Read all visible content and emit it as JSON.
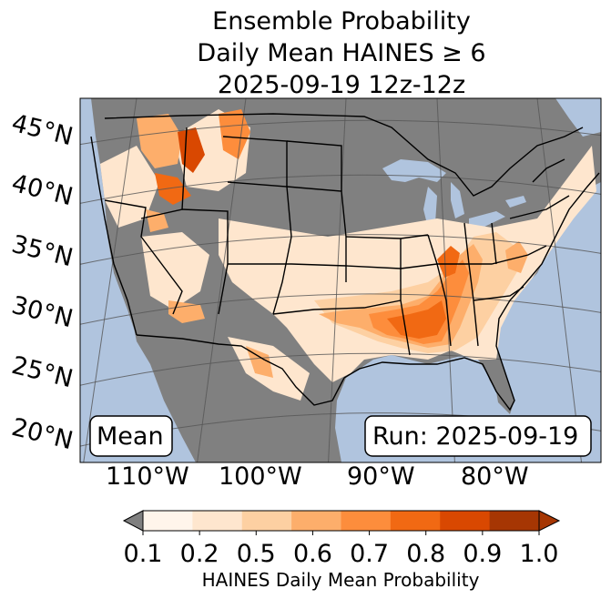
{
  "title": {
    "line1": "Ensemble Probability",
    "line2": "Daily Mean HAINES ≥ 6",
    "line3": "2025-09-19 12z-12z"
  },
  "map": {
    "lat_labels": [
      "45°N",
      "40°N",
      "35°N",
      "30°N",
      "25°N",
      "20°N"
    ],
    "lon_labels": [
      "110°W",
      "100°W",
      "90°W",
      "80°W"
    ],
    "stat_box": "Mean",
    "run_box": "Run: 2025-09-19",
    "colors": {
      "ocean": "#b0c4de",
      "land_low": "#808080",
      "graticule": "#555555",
      "borders": "#000000"
    }
  },
  "colorbar": {
    "ticks": [
      "0.1",
      "0.2",
      "0.5",
      "0.6",
      "0.7",
      "0.8",
      "0.9",
      "1.0"
    ],
    "label": "HAINES Daily Mean Probability",
    "under_color": "#808080",
    "colors": [
      "#fff5eb",
      "#fee6ce",
      "#fdd0a2",
      "#fdae6b",
      "#fd8d3c",
      "#f16913",
      "#d94801",
      "#a63603"
    ]
  }
}
